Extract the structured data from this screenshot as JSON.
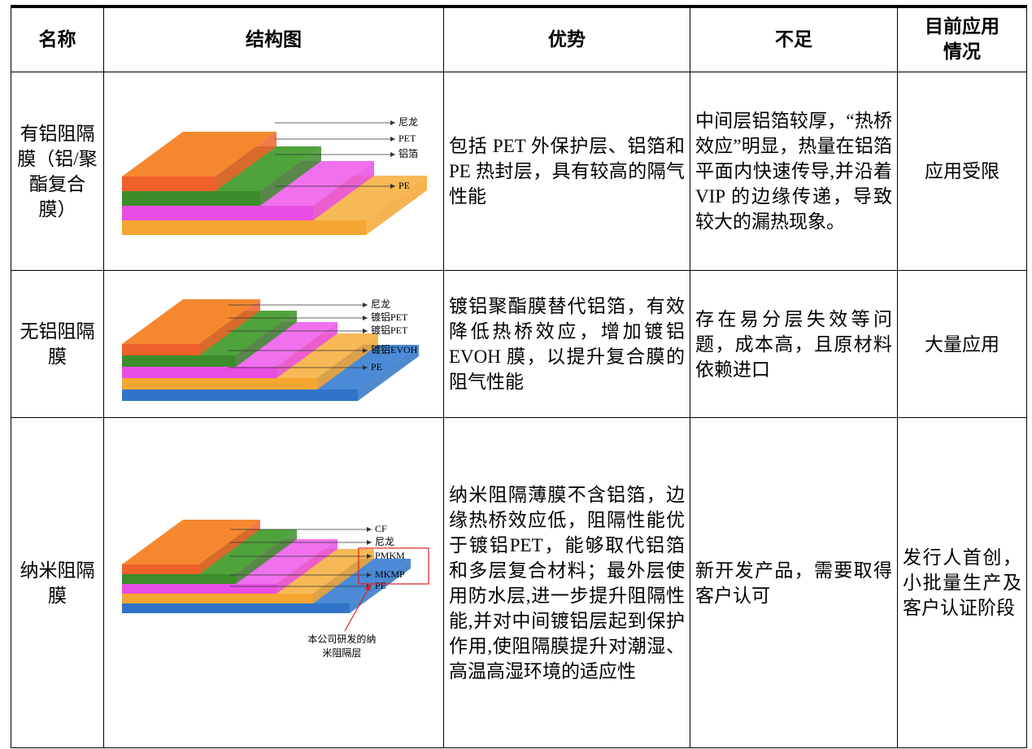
{
  "header": [
    "名称",
    "结构图",
    "优势",
    "不足",
    "目前应用情况"
  ],
  "rows": [
    {
      "name": "有铝阻隔膜（铝/聚酯复合膜）",
      "diagram": {
        "labels": [
          "尼龙",
          "PET",
          "铝箔",
          "PE"
        ]
      },
      "advantages": "包括 PET 外保护层、铝箔和 PE 热封层，具有较高的隔气性能",
      "drawbacks": "中间层铝箔较厚，“热桥效应”明显，热量在铝箔平面内快速传导,并沿着 VIP 的边缘传递，导致较大的漏热现象。",
      "application": "应用受限"
    },
    {
      "name": "无铝阻隔膜",
      "diagram": {
        "labels": [
          "尼龙",
          "镀铝PET",
          "镀铝PET",
          "镀铝EVOH",
          "PE"
        ]
      },
      "advantages": "镀铝聚酯膜替代铝箔，有效降低热桥效应，增加镀铝 EVOH 膜，以提升复合膜的阻气性能",
      "drawbacks": "存在易分层失效等问题，成本高，且原材料依赖进口",
      "application": "大量应用"
    },
    {
      "name": "纳米阻隔膜",
      "diagram": {
        "labels": [
          "CF",
          "尼龙",
          "PMKM",
          "MKMP",
          "PE"
        ],
        "note": "本公司研发的纳米阻隔层"
      },
      "advantages": "纳米阻隔薄膜不含铝箔，边缘热桥效应低，阻隔性能优于镀铝PET，能够取代铝箔和多层复合材料；最外层使用防水层,进一步提升阻隔性能,并对中间镀铝层起到保护作用,使阻隔膜提升对潮湿、高温高湿环境的适应性",
      "drawbacks": "新开发产品，需要取得客户认可",
      "application": "发行人首创，小批量生产及客户认证阶段"
    }
  ]
}
